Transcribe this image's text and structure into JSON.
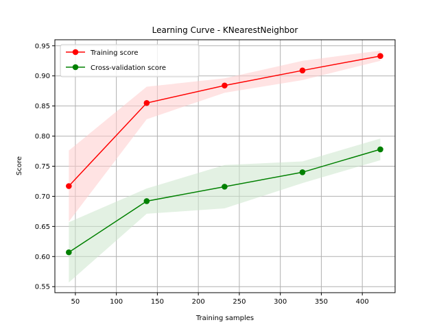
{
  "chart_data": {
    "type": "line",
    "title": "Learning Curve - KNearestNeighbor",
    "xlabel": "Training samples",
    "ylabel": "Score",
    "xlim": [
      25,
      440
    ],
    "ylim": [
      0.54,
      0.96
    ],
    "xticks": [
      50,
      100,
      150,
      200,
      250,
      300,
      350,
      400
    ],
    "yticks": [
      0.55,
      0.6,
      0.65,
      0.7,
      0.75,
      0.8,
      0.85,
      0.9,
      0.95
    ],
    "grid": true,
    "legend": "top-left",
    "x": [
      42,
      137,
      232,
      327,
      422
    ],
    "series": [
      {
        "name": "Training score",
        "color": "#ff0000",
        "band_color": "#ffcccc",
        "values": [
          0.717,
          0.855,
          0.884,
          0.909,
          0.933
        ],
        "lower": [
          0.658,
          0.828,
          0.872,
          0.893,
          0.925
        ],
        "upper": [
          0.776,
          0.882,
          0.896,
          0.925,
          0.942
        ]
      },
      {
        "name": "Cross-validation score",
        "color": "#008000",
        "band_color": "#cce6cc",
        "values": [
          0.607,
          0.692,
          0.716,
          0.74,
          0.778
        ],
        "lower": [
          0.557,
          0.671,
          0.68,
          0.722,
          0.76
        ],
        "upper": [
          0.657,
          0.713,
          0.752,
          0.758,
          0.796
        ]
      }
    ]
  }
}
